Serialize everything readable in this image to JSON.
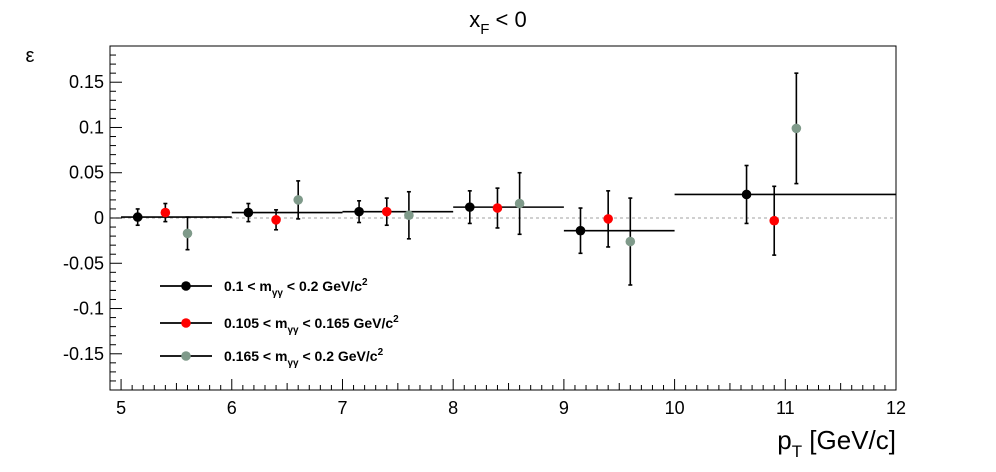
{
  "chart_data": {
    "type": "scatter",
    "title": "x_F < 0",
    "title_main": "x",
    "title_sub": "F",
    "title_rest": " < 0",
    "ylabel": "ε",
    "xlabel_main": "p",
    "xlabel_sub": "T",
    "xlabel_rest": " [GeV/c]",
    "xlim": [
      4.9,
      12
    ],
    "ylim": [
      -0.19,
      0.19
    ],
    "x_ticks": [
      "5",
      "6",
      "7",
      "8",
      "9",
      "10",
      "11",
      "12"
    ],
    "x_tick_values": [
      5,
      6,
      7,
      8,
      9,
      10,
      11,
      12
    ],
    "y_ticks": [
      "0.15",
      "0.1",
      "0.05",
      "0",
      "-0.05",
      "-0.1",
      "-0.15"
    ],
    "y_tick_values": [
      0.15,
      0.1,
      0.05,
      0,
      -0.05,
      -0.1,
      -0.15
    ],
    "zero_line": true,
    "grid": false,
    "legend_position": "bottom-left",
    "series": [
      {
        "key": "black",
        "legend_prefix": "0.1 < m",
        "legend_sub": "γγ",
        "legend_suffix": " < 0.2 GeV/c",
        "legend_sup": "2",
        "color": "#000000",
        "points": [
          {
            "x": 5.15,
            "y": 0.001,
            "xerr_low": 0.15,
            "xerr_high": 0.85,
            "yerr": 0.009
          },
          {
            "x": 6.15,
            "y": 0.006,
            "xerr_low": 0.15,
            "xerr_high": 0.85,
            "yerr": 0.01
          },
          {
            "x": 7.15,
            "y": 0.007,
            "xerr_low": 0.15,
            "xerr_high": 0.85,
            "yerr": 0.012
          },
          {
            "x": 8.15,
            "y": 0.012,
            "xerr_low": 0.15,
            "xerr_high": 0.85,
            "yerr": 0.018
          },
          {
            "x": 9.15,
            "y": -0.014,
            "xerr_low": 0.15,
            "xerr_high": 0.85,
            "yerr": 0.025
          },
          {
            "x": 10.65,
            "y": 0.026,
            "xerr_low": 0.65,
            "xerr_high": 1.35,
            "yerr": 0.032
          }
        ]
      },
      {
        "key": "red",
        "legend_prefix": "0.105 < m",
        "legend_sub": "γγ",
        "legend_suffix": " < 0.165 GeV/c",
        "legend_sup": "2",
        "color": "#ff0000",
        "points": [
          {
            "x": 5.4,
            "y": 0.006,
            "xerr_low": 0,
            "xerr_high": 0,
            "yerr": 0.01
          },
          {
            "x": 6.4,
            "y": -0.002,
            "xerr_low": 0,
            "xerr_high": 0,
            "yerr": 0.011
          },
          {
            "x": 7.4,
            "y": 0.007,
            "xerr_low": 0,
            "xerr_high": 0,
            "yerr": 0.015
          },
          {
            "x": 8.4,
            "y": 0.011,
            "xerr_low": 0,
            "xerr_high": 0,
            "yerr": 0.022
          },
          {
            "x": 9.4,
            "y": -0.001,
            "xerr_low": 0,
            "xerr_high": 0,
            "yerr": 0.031
          },
          {
            "x": 10.9,
            "y": -0.003,
            "xerr_low": 0,
            "xerr_high": 0,
            "yerr": 0.038
          }
        ]
      },
      {
        "key": "gray",
        "legend_prefix": "0.165 < m",
        "legend_sub": "γγ",
        "legend_suffix": " < 0.2 GeV/c",
        "legend_sup": "2",
        "color": "#7f9a8a",
        "points": [
          {
            "x": 5.6,
            "y": -0.017,
            "xerr_low": 0,
            "xerr_high": 0,
            "yerr": 0.018
          },
          {
            "x": 6.6,
            "y": 0.02,
            "xerr_low": 0,
            "xerr_high": 0,
            "yerr": 0.021
          },
          {
            "x": 7.6,
            "y": 0.003,
            "xerr_low": 0,
            "xerr_high": 0,
            "yerr": 0.026
          },
          {
            "x": 8.6,
            "y": 0.016,
            "xerr_low": 0,
            "xerr_high": 0,
            "yerr": 0.034
          },
          {
            "x": 9.6,
            "y": -0.026,
            "xerr_low": 0,
            "xerr_high": 0,
            "yerr": 0.048
          },
          {
            "x": 11.1,
            "y": 0.099,
            "xerr_low": 0,
            "xerr_high": 0,
            "yerr": 0.061
          }
        ]
      }
    ]
  }
}
